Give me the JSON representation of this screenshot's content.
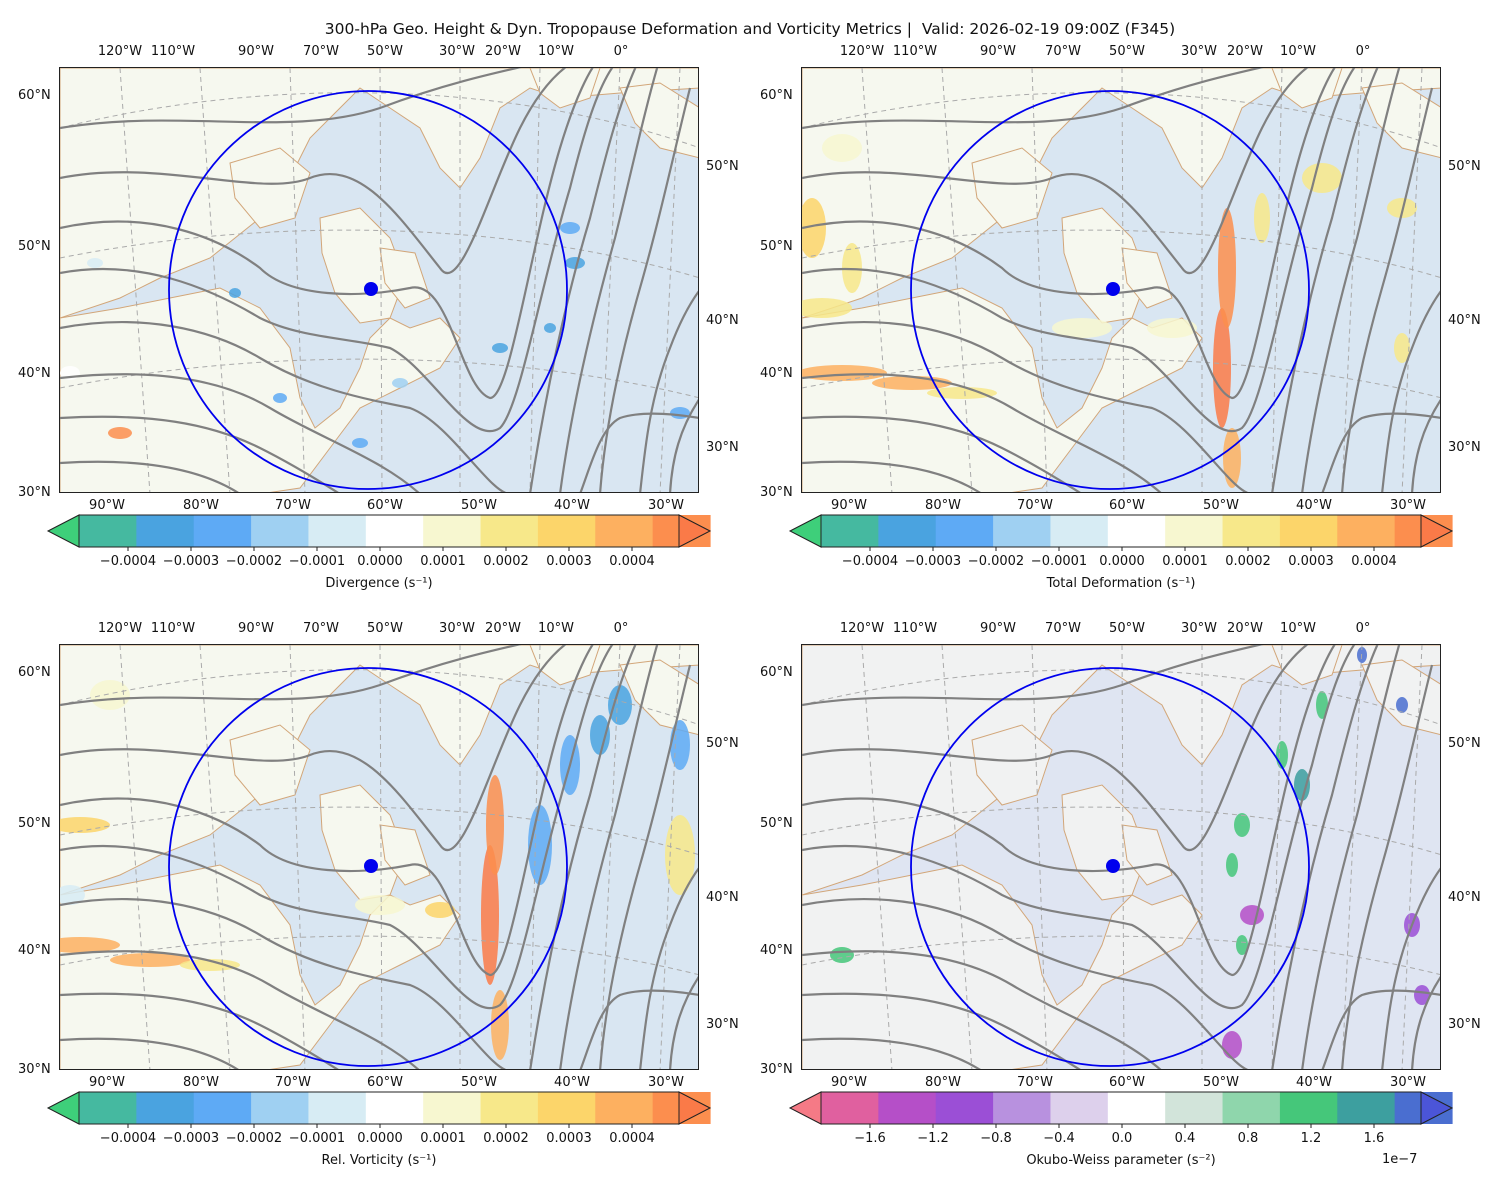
{
  "title": "300-hPa Geo. Height & Dyn. Tropopause Deformation and Vorticity Metrics |  Valid: 2026-02-19 09:00Z (F345)",
  "top_lon_labels": [
    "120°W",
    "110°W",
    "90°W",
    "70°W",
    "50°W",
    "30°W",
    "20°W",
    "10°W",
    "0°"
  ],
  "left_lat_labels": [
    "60°N",
    "50°N",
    "40°N",
    "30°N"
  ],
  "right_lat_labels": [
    "50°N",
    "40°N",
    "30°N"
  ],
  "bottom_lon_labels": [
    "90°W",
    "80°W",
    "70°W",
    "60°W",
    "50°W",
    "40°W",
    "30°W"
  ],
  "colors": {
    "circle": "#0000ee",
    "marker": "#0000ee",
    "coast": "#d2a679",
    "height_contour": "#808080",
    "ocean": "#d9e6f2",
    "land": "#f6f8ef"
  },
  "panels": [
    {
      "field": "Divergence",
      "colorbar_label": "Divergence (s⁻¹)",
      "ticks": [
        "−0.0004",
        "−0.0003",
        "−0.0002",
        "−0.0001",
        "0.0000",
        "0.0001",
        "0.0002",
        "0.0003",
        "0.0004"
      ],
      "offset": "",
      "colormap": [
        "#3ecf7a",
        "#45b9a0",
        "#4aa3e0",
        "#5eaaf5",
        "#9fd0f2",
        "#d7ecf4",
        "#ffffff",
        "#f7f7d0",
        "#f7e88a",
        "#fcd56a",
        "#fdb060",
        "#fc8e4e",
        "#fa7a48"
      ]
    },
    {
      "field": "Total Deformation",
      "colorbar_label": "Total Deformation (s⁻¹)",
      "ticks": [
        "−0.0004",
        "−0.0003",
        "−0.0002",
        "−0.0001",
        "0.0000",
        "0.0001",
        "0.0002",
        "0.0003",
        "0.0004"
      ],
      "offset": "",
      "colormap": [
        "#3ecf7a",
        "#45b9a0",
        "#4aa3e0",
        "#5eaaf5",
        "#9fd0f2",
        "#d7ecf4",
        "#ffffff",
        "#f7f7d0",
        "#f7e88a",
        "#fcd56a",
        "#fdb060",
        "#fc8e4e",
        "#fa7a48"
      ]
    },
    {
      "field": "Rel. Vorticity",
      "colorbar_label": "Rel. Vorticity (s⁻¹)",
      "ticks": [
        "−0.0004",
        "−0.0003",
        "−0.0002",
        "−0.0001",
        "0.0000",
        "0.0001",
        "0.0002",
        "0.0003",
        "0.0004"
      ],
      "offset": "",
      "colormap": [
        "#3ecf7a",
        "#45b9a0",
        "#4aa3e0",
        "#5eaaf5",
        "#9fd0f2",
        "#d7ecf4",
        "#ffffff",
        "#f7f7d0",
        "#f7e88a",
        "#fcd56a",
        "#fdb060",
        "#fc8e4e",
        "#fa7a48"
      ]
    },
    {
      "field": "Okubo-Weiss parameter",
      "colorbar_label": "Okubo-Weiss parameter (s⁻²)",
      "ticks": [
        "−1.6",
        "−1.2",
        "−0.8",
        "−0.4",
        "0.0",
        "0.4",
        "0.8",
        "1.2",
        "1.6"
      ],
      "offset": "1e−7",
      "colormap": [
        "#f57a86",
        "#e0609f",
        "#b54fc8",
        "#9b4fd6",
        "#b891df",
        "#ddd0ec",
        "#ffffff",
        "#d2e4da",
        "#8fd6ac",
        "#45c77a",
        "#3d9f9f",
        "#4a6ed0",
        "#4b55d8"
      ]
    }
  ]
}
